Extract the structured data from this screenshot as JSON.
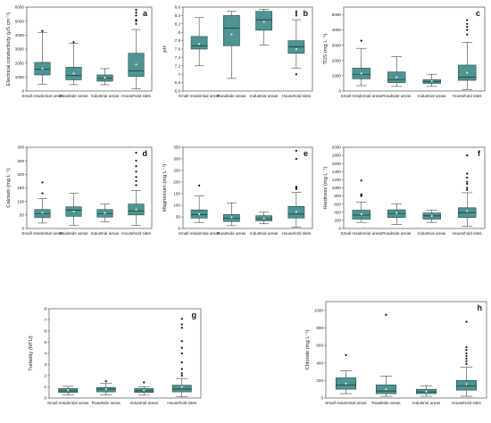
{
  "chart_data": [
    {
      "type": "box",
      "panel": "a",
      "ylabel": "Electrical conductivity (μS cm⁻¹)",
      "categories": [
        "Small residential areas",
        "Roadside areas",
        "Industrial areas",
        "Household sites"
      ],
      "ylim": [
        0,
        6000
      ],
      "yticks": [
        0,
        1000,
        2000,
        3000,
        4000,
        5000,
        6000
      ],
      "boxes": [
        {
          "min": 500,
          "q1": 1150,
          "median": 1550,
          "q3": 2050,
          "max": 4200,
          "mean": 1600,
          "outliers": [
            4300
          ]
        },
        {
          "min": 450,
          "q1": 800,
          "median": 1100,
          "q3": 1700,
          "max": 3400,
          "mean": 1250,
          "outliers": [
            3500
          ]
        },
        {
          "min": 450,
          "q1": 700,
          "median": 900,
          "q3": 1150,
          "max": 1600,
          "mean": 950,
          "outliers": []
        },
        {
          "min": 150,
          "q1": 1050,
          "median": 1450,
          "q3": 2700,
          "max": 4400,
          "mean": 1900,
          "outliers": [
            4800,
            5000,
            5100,
            5400,
            5600,
            5800
          ]
        }
      ]
    },
    {
      "type": "box",
      "panel": "b",
      "ylabel": "pH",
      "categories": [
        "Small residential areas",
        "Roadside areas",
        "Industrial areas",
        "Household sites"
      ],
      "ylim": [
        6.6,
        8.6
      ],
      "yticks": [
        6.6,
        6.8,
        7.0,
        7.2,
        7.4,
        7.6,
        7.8,
        8.0,
        8.2,
        8.4,
        8.6
      ],
      "boxes": [
        {
          "min": 7.2,
          "q1": 7.6,
          "median": 7.68,
          "q3": 7.9,
          "max": 8.35,
          "mean": 7.72,
          "outliers": []
        },
        {
          "min": 6.9,
          "q1": 7.68,
          "median": 8.1,
          "q3": 8.4,
          "max": 8.5,
          "mean": 7.95,
          "outliers": []
        },
        {
          "min": 7.7,
          "q1": 8.05,
          "median": 8.3,
          "q3": 8.5,
          "max": 8.55,
          "mean": 8.25,
          "outliers": []
        },
        {
          "min": 7.15,
          "q1": 7.5,
          "median": 7.65,
          "q3": 7.8,
          "max": 8.3,
          "mean": 7.6,
          "outliers": [
            7.0,
            8.4,
            8.45,
            8.5
          ]
        }
      ]
    },
    {
      "type": "box",
      "panel": "c",
      "ylabel": "TDS (mg L⁻¹)",
      "categories": [
        "Small residential areas",
        "Roadside areas",
        "Industrial areas",
        "Household sites"
      ],
      "ylim": [
        0,
        5500
      ],
      "yticks": [
        0,
        1000,
        2000,
        3000,
        4000,
        5000
      ],
      "boxes": [
        {
          "min": 350,
          "q1": 800,
          "median": 1100,
          "q3": 1500,
          "max": 2800,
          "mean": 1150,
          "outliers": [
            3300
          ]
        },
        {
          "min": 300,
          "q1": 550,
          "median": 750,
          "q3": 1250,
          "max": 2250,
          "mean": 900,
          "outliers": []
        },
        {
          "min": 300,
          "q1": 500,
          "median": 600,
          "q3": 750,
          "max": 1100,
          "mean": 650,
          "outliers": []
        },
        {
          "min": 100,
          "q1": 700,
          "median": 900,
          "q3": 1700,
          "max": 3200,
          "mean": 1200,
          "outliers": [
            3700,
            4000,
            4200,
            4400,
            4650
          ]
        }
      ]
    },
    {
      "type": "box",
      "panel": "d",
      "ylabel": "Calcium (mg L⁻¹)",
      "categories": [
        "Small residential areas",
        "Roadside areas",
        "Industrial areas",
        "Household sites"
      ],
      "ylim": [
        0,
        300
      ],
      "yticks": [
        0,
        50,
        100,
        150,
        200,
        250,
        300
      ],
      "boxes": [
        {
          "min": 20,
          "q1": 40,
          "median": 55,
          "q3": 70,
          "max": 110,
          "mean": 58,
          "outliers": [
            130,
            170
          ]
        },
        {
          "min": 12,
          "q1": 45,
          "median": 68,
          "q3": 80,
          "max": 130,
          "mean": 63,
          "outliers": []
        },
        {
          "min": 25,
          "q1": 42,
          "median": 55,
          "q3": 70,
          "max": 90,
          "mean": 57,
          "outliers": []
        },
        {
          "min": 12,
          "q1": 50,
          "median": 65,
          "q3": 90,
          "max": 140,
          "mean": 70,
          "outliers": [
            160,
            175,
            190,
            210,
            230,
            250,
            280
          ]
        }
      ]
    },
    {
      "type": "box",
      "panel": "e",
      "ylabel": "Magnesium (mg L⁻¹)",
      "categories": [
        "Small residential areas",
        "Roadside areas",
        "Industrial areas",
        "Household sites"
      ],
      "ylim": [
        0,
        350
      ],
      "yticks": [
        0,
        50,
        100,
        150,
        200,
        250,
        300,
        350
      ],
      "boxes": [
        {
          "min": 25,
          "q1": 45,
          "median": 60,
          "q3": 80,
          "max": 140,
          "mean": 62,
          "outliers": [
            185
          ]
        },
        {
          "min": 12,
          "q1": 30,
          "median": 45,
          "q3": 60,
          "max": 110,
          "mean": 48,
          "outliers": []
        },
        {
          "min": 20,
          "q1": 33,
          "median": 42,
          "q3": 55,
          "max": 70,
          "mean": 44,
          "outliers": []
        },
        {
          "min": 5,
          "q1": 45,
          "median": 62,
          "q3": 95,
          "max": 155,
          "mean": 72,
          "outliers": [
            170,
            175,
            180,
            300,
            335
          ]
        }
      ]
    },
    {
      "type": "box",
      "panel": "f",
      "ylabel": "Hardness (mg L⁻¹)",
      "categories": [
        "Small residential areas",
        "Roadside areas",
        "Industrial areas",
        "Household sites"
      ],
      "ylim": [
        0,
        2000
      ],
      "yticks": [
        0,
        200,
        400,
        600,
        800,
        1000,
        1200,
        1400,
        1600,
        1800,
        2000
      ],
      "boxes": [
        {
          "min": 150,
          "q1": 230,
          "median": 330,
          "q3": 450,
          "max": 650,
          "mean": 350,
          "outliers": [
            800,
            820,
            840,
            1180
          ]
        },
        {
          "min": 100,
          "q1": 270,
          "median": 370,
          "q3": 460,
          "max": 600,
          "mean": 380,
          "outliers": []
        },
        {
          "min": 150,
          "q1": 230,
          "median": 310,
          "q3": 380,
          "max": 450,
          "mean": 310,
          "outliers": []
        },
        {
          "min": 50,
          "q1": 270,
          "median": 390,
          "q3": 510,
          "max": 880,
          "mean": 430,
          "outliers": [
            950,
            1000,
            1100,
            1150,
            1250,
            1350,
            1800
          ]
        }
      ]
    },
    {
      "type": "box",
      "panel": "g",
      "ylabel": "Turbidity (NTU)",
      "categories": [
        "Small residential areas",
        "Roadside areas",
        "Industrial areas",
        "Household sites"
      ],
      "ylim": [
        0,
        8
      ],
      "yticks": [
        0,
        1,
        2,
        3,
        4,
        5,
        6,
        7,
        8
      ],
      "boxes": [
        {
          "min": 0.3,
          "q1": 0.5,
          "median": 0.65,
          "q3": 0.85,
          "max": 1.05,
          "mean": 0.7,
          "outliers": []
        },
        {
          "min": 0.3,
          "q1": 0.55,
          "median": 0.8,
          "q3": 0.95,
          "max": 1.3,
          "mean": 0.8,
          "outliers": [
            1.5
          ]
        },
        {
          "min": 0.25,
          "q1": 0.5,
          "median": 0.65,
          "q3": 0.85,
          "max": 1.0,
          "mean": 0.7,
          "outliers": [
            1.4
          ]
        },
        {
          "min": 0.1,
          "q1": 0.55,
          "median": 0.8,
          "q3": 1.15,
          "max": 1.75,
          "mean": 1.0,
          "outliers": [
            2.0,
            2.2,
            2.6,
            3.2,
            4.0,
            4.5,
            5.1,
            6.3,
            6.6,
            7.1
          ]
        }
      ]
    },
    {
      "type": "box",
      "panel": "h",
      "ylabel": "Chloride (mg L⁻¹)",
      "categories": [
        "Small residential areas",
        "Roadside areas",
        "Industrial areas",
        "Household sites"
      ],
      "ylim": [
        0,
        1100
      ],
      "yticks": [
        0,
        200,
        400,
        600,
        800,
        1000
      ],
      "boxes": [
        {
          "min": 50,
          "q1": 100,
          "median": 150,
          "q3": 230,
          "max": 310,
          "mean": 165,
          "outliers": [
            490
          ]
        },
        {
          "min": 20,
          "q1": 50,
          "median": 80,
          "q3": 150,
          "max": 250,
          "mean": 100,
          "outliers": [
            950
          ]
        },
        {
          "min": 20,
          "q1": 50,
          "median": 70,
          "q3": 100,
          "max": 140,
          "mean": 75,
          "outliers": []
        },
        {
          "min": 20,
          "q1": 90,
          "median": 140,
          "q3": 200,
          "max": 350,
          "mean": 160,
          "outliers": [
            390,
            420,
            450,
            480,
            510,
            550,
            580,
            870
          ]
        }
      ]
    }
  ],
  "style": {
    "box_fill": "#4f9490",
    "box_stroke": "#1f4d4b",
    "axis": "#333333"
  }
}
